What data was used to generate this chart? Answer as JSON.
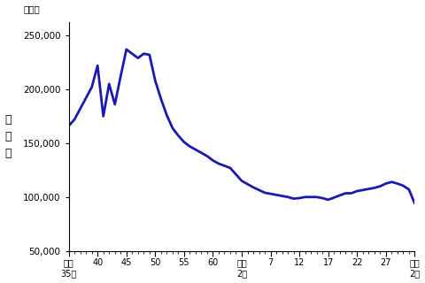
{
  "unit_label": "（人）",
  "ylabel_text": "出\n生\n数",
  "line_color": "#1a1ab0",
  "line_width": 2.0,
  "background_color": "#ffffff",
  "ylim": [
    50000,
    262000
  ],
  "yticks": [
    50000,
    100000,
    150000,
    200000,
    250000
  ],
  "xlim": [
    1960,
    2020
  ],
  "x_tick_positions": [
    1960,
    1965,
    1970,
    1975,
    1980,
    1985,
    1990,
    1995,
    2000,
    2005,
    2010,
    2015,
    2020
  ],
  "x_tick_labels": [
    "昭和\n35年",
    "40",
    "45",
    "50",
    "55",
    "60",
    "平成\n2年",
    "7",
    "12",
    "17",
    "22",
    "27",
    "令和\n2年"
  ],
  "data": [
    [
      1960,
      166000
    ],
    [
      1961,
      172000
    ],
    [
      1962,
      182000
    ],
    [
      1963,
      192000
    ],
    [
      1964,
      202000
    ],
    [
      1965,
      222000
    ],
    [
      1966,
      175000
    ],
    [
      1967,
      205000
    ],
    [
      1968,
      186000
    ],
    [
      1969,
      212000
    ],
    [
      1970,
      237000
    ],
    [
      1971,
      233000
    ],
    [
      1972,
      229000
    ],
    [
      1973,
      233000
    ],
    [
      1974,
      232000
    ],
    [
      1975,
      208000
    ],
    [
      1976,
      191000
    ],
    [
      1977,
      176000
    ],
    [
      1978,
      164000
    ],
    [
      1979,
      157000
    ],
    [
      1980,
      151000
    ],
    [
      1981,
      147000
    ],
    [
      1982,
      144000
    ],
    [
      1983,
      141000
    ],
    [
      1984,
      138000
    ],
    [
      1985,
      134000
    ],
    [
      1986,
      131000
    ],
    [
      1987,
      129000
    ],
    [
      1988,
      127000
    ],
    [
      1989,
      121000
    ],
    [
      1990,
      115000
    ],
    [
      1991,
      112000
    ],
    [
      1992,
      109000
    ],
    [
      1993,
      106500
    ],
    [
      1994,
      104000
    ],
    [
      1995,
      103000
    ],
    [
      1996,
      102000
    ],
    [
      1997,
      101000
    ],
    [
      1998,
      100000
    ],
    [
      1999,
      98500
    ],
    [
      2000,
      99000
    ],
    [
      2001,
      100000
    ],
    [
      2002,
      100000
    ],
    [
      2003,
      100000
    ],
    [
      2004,
      99000
    ],
    [
      2005,
      97500
    ],
    [
      2006,
      99500
    ],
    [
      2007,
      101500
    ],
    [
      2008,
      103500
    ],
    [
      2009,
      103500
    ],
    [
      2010,
      105500
    ],
    [
      2011,
      106500
    ],
    [
      2012,
      107500
    ],
    [
      2013,
      108500
    ],
    [
      2014,
      110000
    ],
    [
      2015,
      112500
    ],
    [
      2016,
      114000
    ],
    [
      2017,
      112500
    ],
    [
      2018,
      110500
    ],
    [
      2019,
      107000
    ],
    [
      2020,
      94000
    ]
  ]
}
